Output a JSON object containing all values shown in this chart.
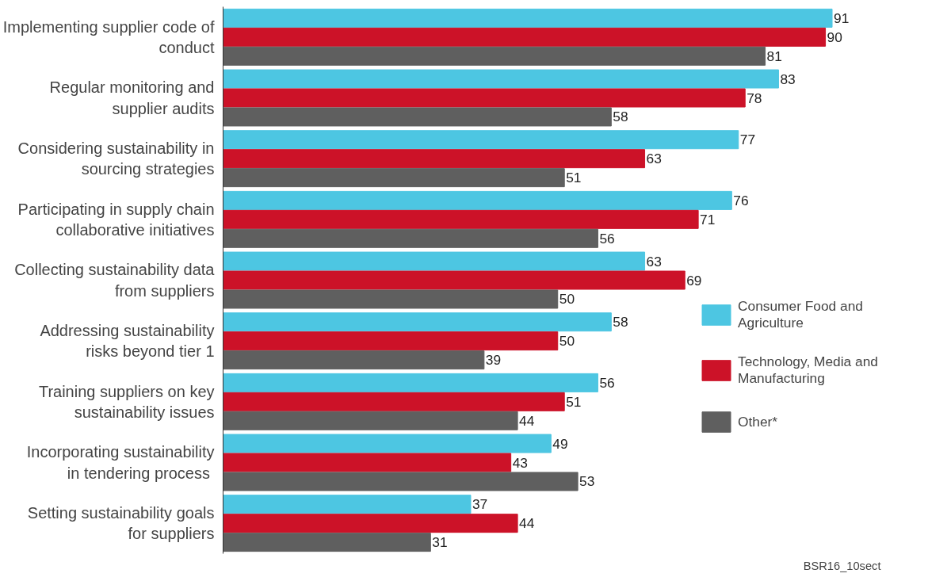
{
  "chart_data": {
    "type": "bar",
    "orientation": "horizontal",
    "data_labels": true,
    "legend": "right",
    "grid": false,
    "categories": [
      "Implementing supplier code of conduct",
      "Regular monitoring and supplier audits",
      "Considering sustainability in sourcing strategies",
      "Participating in supply chain collaborative initiatives",
      "Collecting sustainability data from suppliers",
      "Addressing sustainability risks beyond tier 1",
      "Training suppliers on key sustainability issues",
      "Incorporating sustainability in  tendering process",
      "Setting sustainability goals for suppliers"
    ],
    "series": [
      {
        "name": "Consumer Food and Agriculture",
        "color": "#4dc6e2",
        "values": [
          91,
          83,
          77,
          76,
          63,
          58,
          56,
          49,
          37
        ]
      },
      {
        "name": "Technology, Media and Manufacturing",
        "color": "#cc1228",
        "values": [
          90,
          78,
          63,
          71,
          69,
          50,
          51,
          43,
          44
        ]
      },
      {
        "name": "Other*",
        "color": "#5f5f5f",
        "values": [
          81,
          58,
          51,
          56,
          50,
          39,
          44,
          53,
          31
        ]
      }
    ],
    "annotations": [
      "BSR16_10sect"
    ]
  }
}
